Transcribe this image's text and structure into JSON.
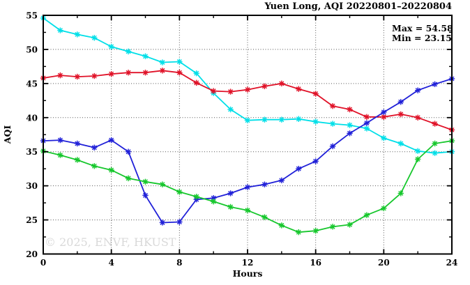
{
  "chart_data": {
    "type": "line",
    "title": "Yuen Long, AQI 20220801–20220804",
    "xlabel": "Hours",
    "ylabel": "AQI",
    "xlim": [
      0,
      24
    ],
    "ylim": [
      20,
      55
    ],
    "grid": true,
    "legend": "none",
    "x_major_ticks": [
      0,
      4,
      8,
      12,
      16,
      20,
      24
    ],
    "x_minor_ticks": [
      2,
      6,
      10,
      14,
      18,
      22
    ],
    "y_major_ticks": [
      20,
      25,
      30,
      35,
      40,
      45,
      50,
      55
    ],
    "y_minor_ticks": [
      22.5,
      27.5,
      32.5,
      37.5,
      42.5,
      47.5,
      52.5
    ],
    "x": [
      0,
      1,
      2,
      3,
      4,
      5,
      6,
      7,
      8,
      9,
      10,
      11,
      12,
      13,
      14,
      15,
      16,
      17,
      18,
      19,
      20,
      21,
      22,
      23,
      24
    ],
    "series": [
      {
        "name": "series-cyan",
        "color": "#00dfe8",
        "values": [
          54.6,
          52.8,
          52.2,
          51.7,
          50.4,
          49.7,
          49.0,
          48.1,
          48.2,
          46.5,
          43.6,
          41.2,
          39.6,
          39.7,
          39.7,
          39.8,
          39.4,
          39.1,
          38.9,
          38.4,
          37.0,
          36.2,
          35.1,
          34.8,
          35.0
        ]
      },
      {
        "name": "series-red",
        "color": "#e01228",
        "values": [
          45.8,
          46.2,
          46.0,
          46.1,
          46.4,
          46.6,
          46.6,
          46.9,
          46.6,
          45.1,
          43.9,
          43.8,
          44.1,
          44.6,
          45.0,
          44.2,
          43.5,
          41.7,
          41.2,
          40.1,
          40.1,
          40.5,
          40.0,
          39.1,
          38.2
        ]
      },
      {
        "name": "series-blue",
        "color": "#2020d8",
        "values": [
          36.6,
          36.7,
          36.2,
          35.6,
          36.7,
          35.0,
          28.6,
          24.6,
          24.7,
          28.0,
          28.2,
          28.9,
          29.8,
          30.2,
          30.8,
          32.5,
          33.6,
          35.8,
          37.7,
          39.2,
          40.8,
          42.3,
          44.0,
          44.9,
          45.7
        ]
      },
      {
        "name": "series-green",
        "color": "#16c72c",
        "values": [
          35.1,
          34.5,
          33.8,
          32.9,
          32.3,
          31.1,
          30.6,
          30.2,
          29.1,
          28.4,
          27.7,
          26.9,
          26.4,
          25.4,
          24.2,
          23.2,
          23.4,
          24.0,
          24.3,
          25.7,
          26.7,
          28.9,
          33.9,
          36.2,
          36.6
        ]
      }
    ],
    "annotations": {
      "max_label": "Max = 54.58",
      "min_label": "Min = 23.15"
    },
    "watermark": "© 2025, ENVF, HKUST",
    "colors": {
      "axis": "#000000",
      "grid": "#555555",
      "watermark": "#d9d9d9",
      "background": "#ffffff"
    }
  }
}
